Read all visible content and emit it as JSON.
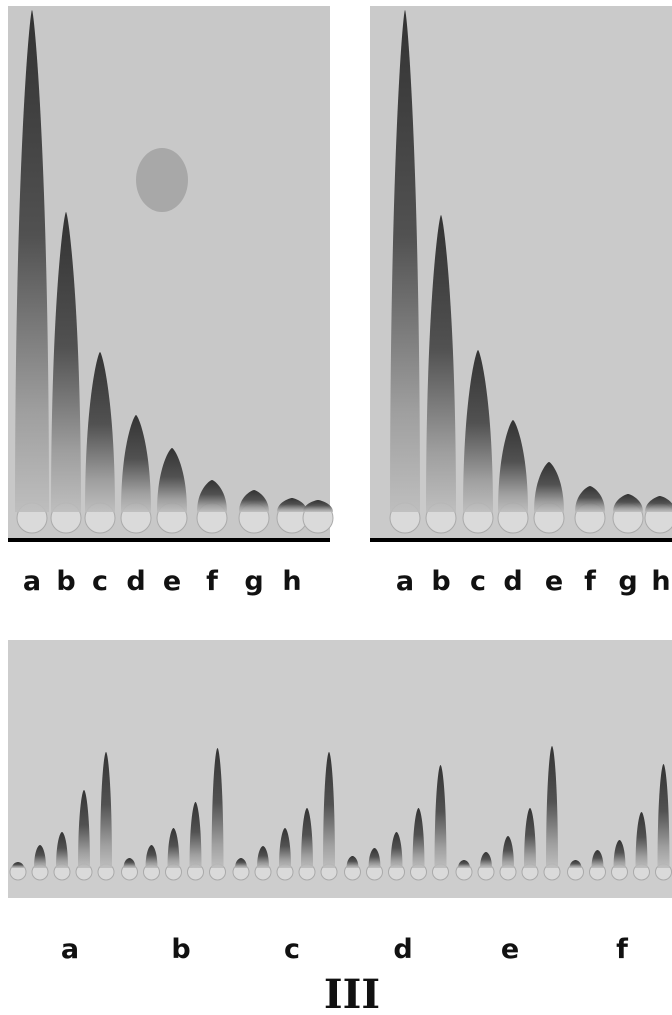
{
  "panels": [
    {
      "labels": [
        "a",
        "b",
        "c",
        "d",
        "e",
        "f",
        "g",
        "h"
      ]
    },
    {
      "labels": [
        "a",
        "b",
        "c",
        "d",
        "e",
        "f",
        "g",
        "h"
      ]
    },
    {
      "labels": [
        "a",
        "b",
        "c",
        "d",
        "e",
        "f"
      ]
    }
  ],
  "caption": "III"
}
